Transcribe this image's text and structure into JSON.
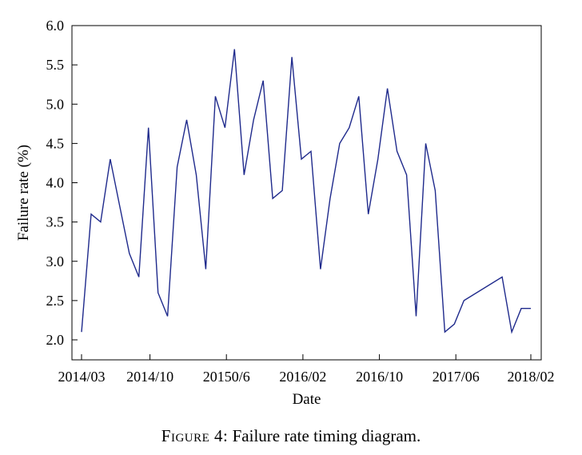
{
  "chart_data": {
    "type": "line",
    "xlabel": "Date",
    "ylabel": "Failure rate (%)",
    "ylim": [
      2.0,
      6.0
    ],
    "yticks": [
      "2.0",
      "2.5",
      "3.0",
      "3.5",
      "4.0",
      "4.5",
      "5.0",
      "5.5",
      "6.0"
    ],
    "xticks": [
      "2014/03",
      "2014/10",
      "20150/6",
      "2016/02",
      "2016/10",
      "2017/06",
      "2018/02"
    ],
    "grid": false,
    "line_color": "#1f2a8c",
    "series": [
      {
        "x": [
          "2014/03",
          "2014/04",
          "2014/05",
          "2014/06",
          "2014/07",
          "2014/08",
          "2014/09",
          "2014/10",
          "2014/11",
          "2014/12",
          "2015/01",
          "2015/02",
          "2015/03",
          "2015/04",
          "2015/05",
          "2015/06",
          "2015/07",
          "2015/08",
          "2015/09",
          "2015/10",
          "2015/11",
          "2015/12",
          "2016/01",
          "2016/02",
          "2016/03",
          "2016/04",
          "2016/05",
          "2016/06",
          "2016/07",
          "2016/08",
          "2016/09",
          "2016/10",
          "2016/11",
          "2016/12",
          "2017/01",
          "2017/02",
          "2017/03",
          "2017/04",
          "2017/05",
          "2017/06",
          "2017/07",
          "2017/11",
          "2017/12",
          "2018/01",
          "2018/02"
        ],
        "values": [
          2.1,
          3.6,
          3.5,
          4.3,
          3.7,
          3.1,
          2.8,
          4.7,
          2.6,
          2.3,
          4.2,
          4.8,
          4.1,
          2.9,
          5.1,
          4.7,
          5.7,
          4.1,
          4.8,
          5.3,
          3.8,
          3.9,
          5.6,
          4.3,
          4.4,
          2.9,
          3.8,
          4.5,
          4.7,
          5.1,
          3.6,
          4.3,
          5.2,
          4.4,
          4.1,
          2.3,
          4.5,
          3.9,
          2.1,
          2.2,
          2.5,
          2.8,
          2.1,
          2.4,
          2.4
        ]
      }
    ]
  },
  "caption": {
    "figure_label": "Figure 4:",
    "text": " Failure rate timing diagram."
  }
}
